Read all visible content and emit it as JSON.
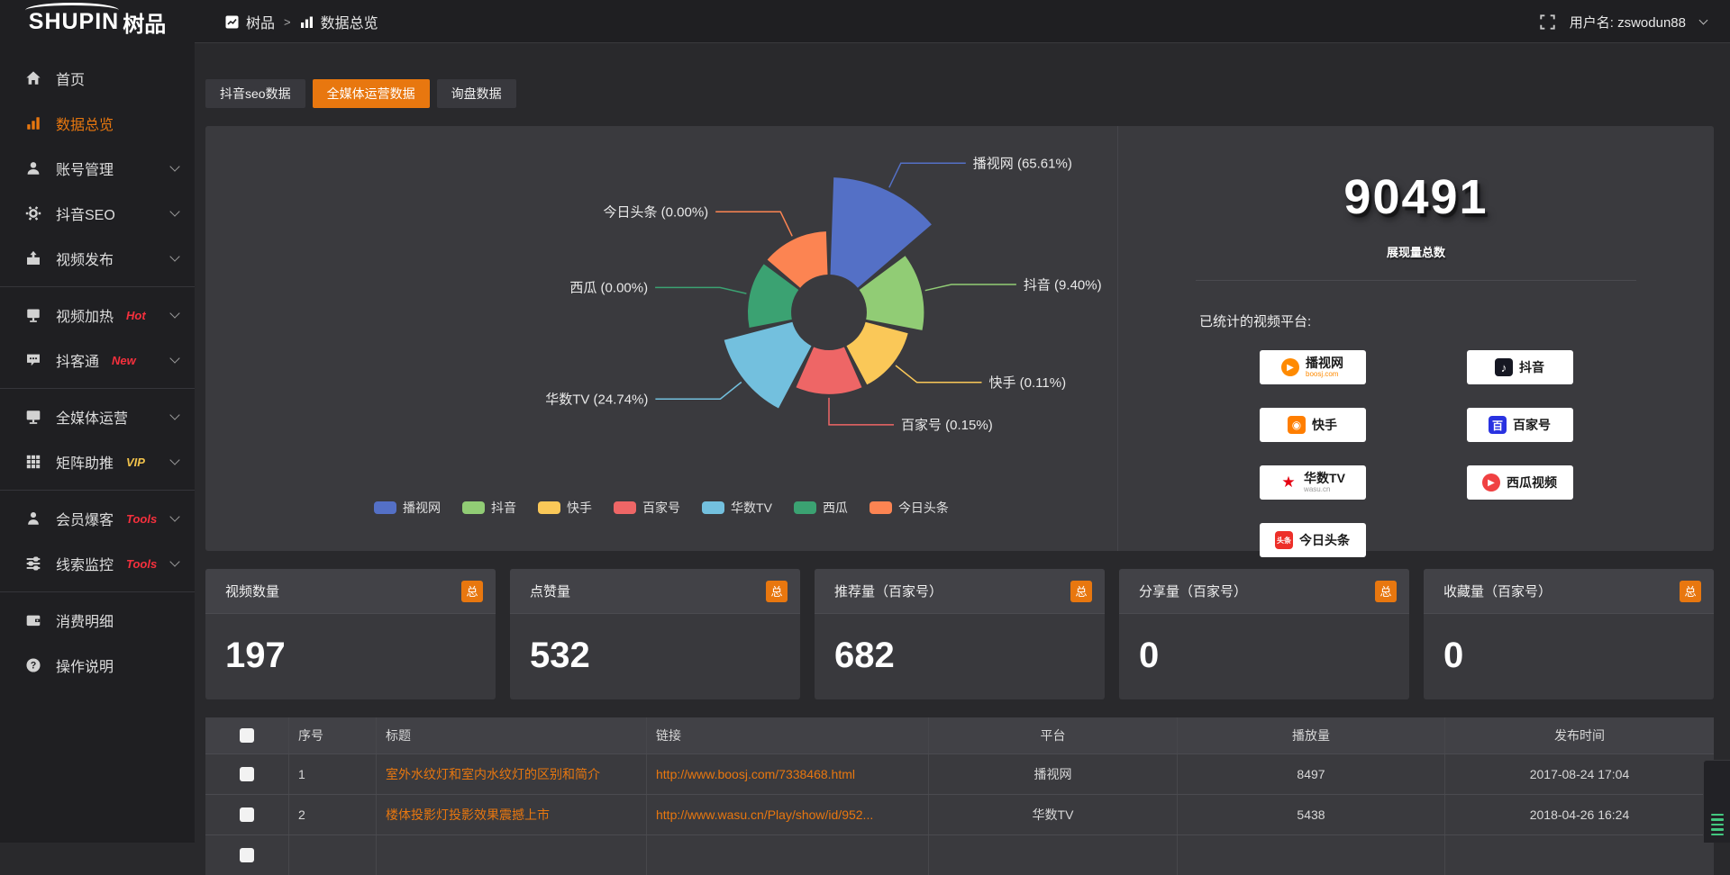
{
  "topbar": {
    "logo_en": "SHUPIN",
    "logo_cn": "树品",
    "breadcrumb_root": "树品",
    "breadcrumb_sep": ">",
    "breadcrumb_current": "数据总览",
    "username": "用户名: zswodun88"
  },
  "sidebar": {
    "items": [
      {
        "label": "首页",
        "icon": "home-icon",
        "active": false,
        "chevron": false,
        "tag": null,
        "divider_after": false
      },
      {
        "label": "数据总览",
        "icon": "bar-chart-icon",
        "active": true,
        "chevron": false,
        "tag": null,
        "divider_after": false
      },
      {
        "label": "账号管理",
        "icon": "user-icon",
        "active": false,
        "chevron": true,
        "tag": null,
        "divider_after": false
      },
      {
        "label": "抖音SEO",
        "icon": "gear-icon",
        "active": false,
        "chevron": true,
        "tag": null,
        "divider_after": false
      },
      {
        "label": "视频发布",
        "icon": "video-publish-icon",
        "active": false,
        "chevron": true,
        "tag": null,
        "divider_after": true
      },
      {
        "label": "视频加热",
        "icon": "video-heat-icon",
        "active": false,
        "chevron": true,
        "tag": {
          "text": "Hot",
          "color": "#f5303d"
        },
        "divider_after": false
      },
      {
        "label": "抖客通",
        "icon": "chat-icon",
        "active": false,
        "chevron": true,
        "tag": {
          "text": "New",
          "color": "#f5303d"
        },
        "divider_after": true
      },
      {
        "label": "全媒体运营",
        "icon": "monitor-icon",
        "active": false,
        "chevron": true,
        "tag": null,
        "divider_after": false
      },
      {
        "label": "矩阵助推",
        "icon": "grid-icon",
        "active": false,
        "chevron": true,
        "tag": {
          "text": "VIP",
          "color": "#f0c14b"
        },
        "divider_after": true
      },
      {
        "label": "会员爆客",
        "icon": "member-icon",
        "active": false,
        "chevron": true,
        "tag": {
          "text": "Tools",
          "color": "#f5303d"
        },
        "divider_after": false
      },
      {
        "label": "线索监控",
        "icon": "sliders-icon",
        "active": false,
        "chevron": true,
        "tag": {
          "text": "Tools",
          "color": "#f5303d"
        },
        "divider_after": true
      },
      {
        "label": "消费明细",
        "icon": "wallet-icon",
        "active": false,
        "chevron": false,
        "tag": null,
        "divider_after": false
      },
      {
        "label": "操作说明",
        "icon": "help-icon",
        "active": false,
        "chevron": false,
        "tag": null,
        "divider_after": false
      }
    ]
  },
  "tabs": [
    {
      "label": "抖音seo数据",
      "active": false
    },
    {
      "label": "全媒体运营数据",
      "active": true
    },
    {
      "label": "询盘数据",
      "active": false
    }
  ],
  "chart_data": {
    "type": "pie",
    "rose": true,
    "unit": "%",
    "legend_position": "bottom",
    "items": [
      {
        "name": "播视网",
        "pct": 65.61,
        "color": "#5470c6"
      },
      {
        "name": "抖音",
        "pct": 9.4,
        "color": "#91cc75"
      },
      {
        "name": "快手",
        "pct": 0.11,
        "color": "#fac858"
      },
      {
        "name": "百家号",
        "pct": 0.15,
        "color": "#ee6666"
      },
      {
        "name": "华数TV",
        "pct": 24.74,
        "color": "#73c0de"
      },
      {
        "name": "西瓜",
        "pct": 0.0,
        "color": "#3ba272"
      },
      {
        "name": "今日头条",
        "pct": 0.0,
        "color": "#fc8452"
      }
    ]
  },
  "summary": {
    "total_value": "90491",
    "total_label": "展现量总数",
    "platforms_label": "已统计的视频平台:",
    "platforms_left": [
      {
        "name": "播视网",
        "sub": "boosj.com",
        "sub_color": "#ff8a00",
        "logo": "boosj-icon",
        "color": "#ff8a00"
      },
      {
        "name": "快手",
        "sub": null,
        "sub_color": null,
        "logo": "kuaishou-icon",
        "color": "#ff7e00"
      },
      {
        "name": "华数TV",
        "sub": "wasu.cn",
        "sub_color": "#999999",
        "logo": "wasu-icon",
        "color": "#e60012"
      },
      {
        "name": "今日头条",
        "sub": null,
        "sub_color": null,
        "logo": "toutiao-icon",
        "color": "#ed2f29"
      }
    ],
    "platforms_right": [
      {
        "name": "抖音",
        "sub": null,
        "sub_color": null,
        "logo": "douyin-icon",
        "color": "#161823"
      },
      {
        "name": "百家号",
        "sub": null,
        "sub_color": null,
        "logo": "baijiahao-icon",
        "color": "#2932e1"
      },
      {
        "name": "西瓜视频",
        "sub": null,
        "sub_color": null,
        "logo": "xigua-icon",
        "color": "#f04142"
      }
    ]
  },
  "stat_cards": [
    {
      "title": "视频数量",
      "badge": "总",
      "value": "197"
    },
    {
      "title": "点赞量",
      "badge": "总",
      "value": "532"
    },
    {
      "title": "推荐量（百家号）",
      "badge": "总",
      "value": "682"
    },
    {
      "title": "分享量（百家号）",
      "badge": "总",
      "value": "0"
    },
    {
      "title": "收藏量（百家号）",
      "badge": "总",
      "value": "0"
    }
  ],
  "table": {
    "has_checkbox": true,
    "columns": [
      "序号",
      "标题",
      "链接",
      "平台",
      "播放量",
      "发布时间"
    ],
    "rows": [
      {
        "index": "1",
        "title": "室外水纹灯和室内水纹灯的区别和简介",
        "link": "http://www.boosj.com/7338468.html",
        "platform": "播视网",
        "plays": "8497",
        "time": "2017-08-24 17:04"
      },
      {
        "index": "2",
        "title": "楼体投影灯投影效果震撼上市",
        "link": "http://www.wasu.cn/Play/show/id/952...",
        "platform": "华数TV",
        "plays": "5438",
        "time": "2018-04-26 16:24"
      }
    ]
  },
  "colors": {
    "accent": "#e8770f",
    "widget_bars": "#43c77f"
  }
}
